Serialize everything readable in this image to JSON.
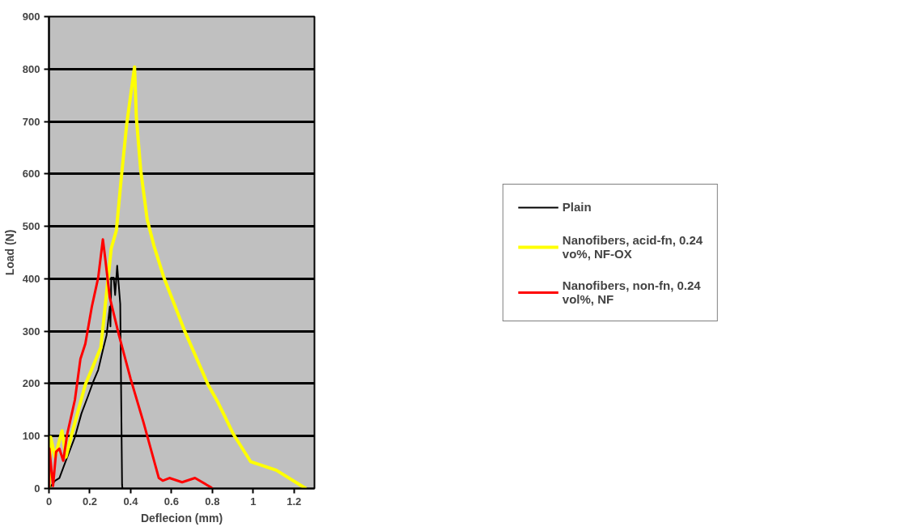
{
  "chart_data": {
    "type": "line",
    "xlabel": "Deflecion (mm)",
    "ylabel": "Load (N)",
    "xlim": [
      0,
      1.3
    ],
    "ylim": [
      0,
      900
    ],
    "xticks": [
      0,
      0.2,
      0.4,
      0.6,
      0.8,
      1,
      1.2
    ],
    "yticks": [
      0,
      100,
      200,
      300,
      400,
      500,
      600,
      700,
      800,
      900
    ],
    "grid": "y",
    "legend": "right",
    "marker": "none",
    "line_style": "solid",
    "series": [
      {
        "name": "Plain",
        "color": "#000000",
        "x": [
          0,
          0.03,
          0.051,
          0.078,
          0.127,
          0.159,
          0.191,
          0.216,
          0.241,
          0.267,
          0.282,
          0.298,
          0.301,
          0.305,
          0.317,
          0.324,
          0.334,
          0.349,
          0.358,
          0.36
        ],
        "values": [
          0,
          15,
          20,
          48,
          98,
          143,
          176,
          203,
          226,
          269,
          292,
          347,
          309,
          402,
          402,
          369,
          425,
          352,
          7,
          0
        ]
      },
      {
        "name": "Nanofibers, acid-fn, 0.24 vo%, NF-OX",
        "color": "#ffff00",
        "x": [
          0,
          0.004,
          0.008,
          0.03,
          0.05,
          0.064,
          0.083,
          0.116,
          0.178,
          0.254,
          0.305,
          0.33,
          0.355,
          0.381,
          0.419,
          0.428,
          0.449,
          0.481,
          0.514,
          0.563,
          0.665,
          0.779,
          0.828,
          0.904,
          0.988,
          1.113,
          1.245,
          1.26
        ],
        "values": [
          0,
          30,
          98,
          60,
          90,
          110,
          60,
          110,
          198,
          269,
          458,
          492,
          596,
          696,
          804,
          707,
          608,
          513,
          463,
          402,
          300,
          198,
          164,
          103,
          51,
          35,
          3,
          0
        ]
      },
      {
        "name": "Nanofibers, non-fn, 0.24 vol%, NF",
        "color": "#ff0000",
        "x": [
          0,
          0.002,
          0.02,
          0.035,
          0.051,
          0.07,
          0.089,
          0.127,
          0.154,
          0.178,
          0.21,
          0.241,
          0.264,
          0.273,
          0.298,
          0.343,
          0.4,
          0.463,
          0.538,
          0.557,
          0.59,
          0.652,
          0.715,
          0.79,
          0.8
        ],
        "values": [
          0,
          76,
          5,
          70,
          76,
          53,
          103,
          169,
          247,
          276,
          347,
          402,
          475,
          447,
          364,
          292,
          209,
          126,
          20,
          15,
          20,
          12,
          20,
          3,
          0
        ]
      }
    ]
  }
}
